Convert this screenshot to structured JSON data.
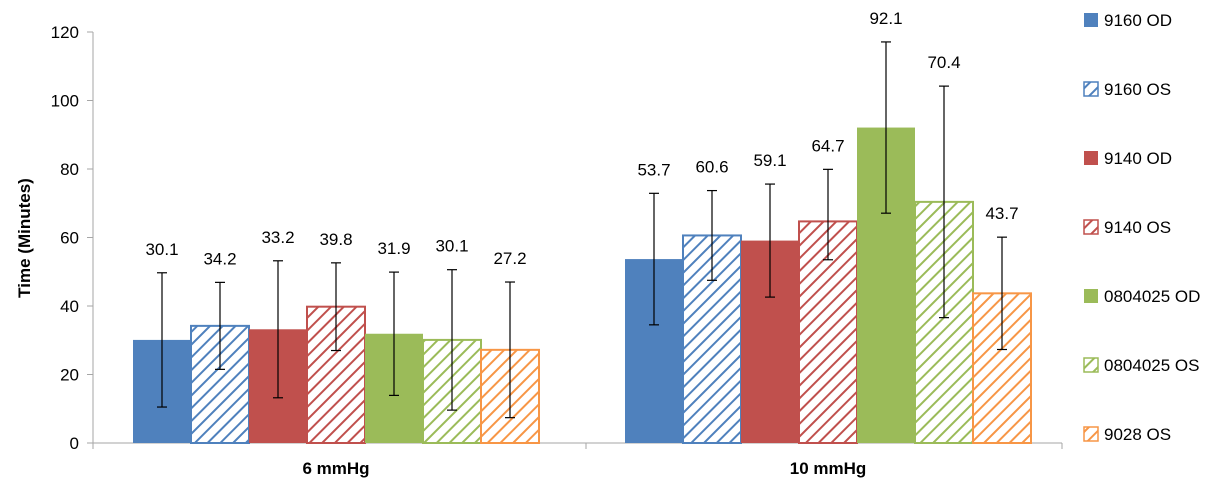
{
  "chart_data": {
    "type": "bar",
    "ylabel": "Time (Minutes)",
    "xlabel": "",
    "ylim": [
      0,
      120
    ],
    "yticks": [
      0,
      20,
      40,
      60,
      80,
      100,
      120
    ],
    "grid": false,
    "legend_position": "right",
    "categories": [
      "6 mmHg",
      "10 mmHg"
    ],
    "series": [
      {
        "name": "9160 OD",
        "color": "#4f81bd",
        "fill": "solid",
        "values": [
          30.1,
          53.7
        ],
        "err_low": [
          10.5,
          34.5
        ],
        "err_high": [
          49.7,
          72.9
        ]
      },
      {
        "name": "9160 OS",
        "color": "#4f81bd",
        "fill": "hatched",
        "values": [
          34.2,
          60.6
        ],
        "err_low": [
          21.5,
          47.5
        ],
        "err_high": [
          46.9,
          73.7
        ]
      },
      {
        "name": "9140 OD",
        "color": "#c0504d",
        "fill": "solid",
        "values": [
          33.2,
          59.1
        ],
        "err_low": [
          13.2,
          42.6
        ],
        "err_high": [
          53.2,
          75.6
        ]
      },
      {
        "name": "9140 OS",
        "color": "#c0504d",
        "fill": "hatched",
        "values": [
          39.8,
          64.7
        ],
        "err_low": [
          27,
          53.5
        ],
        "err_high": [
          52.6,
          79.9
        ]
      },
      {
        "name": "0804025 OD",
        "color": "#9bbb59",
        "fill": "solid",
        "values": [
          31.9,
          92.1
        ],
        "err_low": [
          13.9,
          67.1
        ],
        "err_high": [
          49.9,
          117.1
        ]
      },
      {
        "name": "0804025 OS",
        "color": "#9bbb59",
        "fill": "hatched",
        "values": [
          30.1,
          70.4
        ],
        "err_low": [
          9.6,
          36.6
        ],
        "err_high": [
          50.6,
          104.2
        ]
      },
      {
        "name": "9028 OS",
        "color": "#f79646",
        "fill": "hatched",
        "values": [
          27.2,
          43.7
        ],
        "err_low": [
          7.4,
          27.3
        ],
        "err_high": [
          47,
          60.1
        ]
      }
    ]
  }
}
